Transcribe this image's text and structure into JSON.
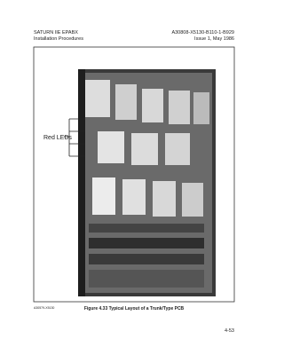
{
  "header": {
    "left": [
      "SATURN IIE EPABX",
      "Installation Procedures"
    ],
    "right": [
      "A30808-X5130-B110-1-B929",
      "Issue 1, May 1986"
    ]
  },
  "figure": {
    "callout": "Red LEDs",
    "code": "A30579-X5130",
    "caption": "Figure 4.33   Typical Layout of a Trunk/Type PCB"
  },
  "footer": {
    "page": "4-53"
  }
}
